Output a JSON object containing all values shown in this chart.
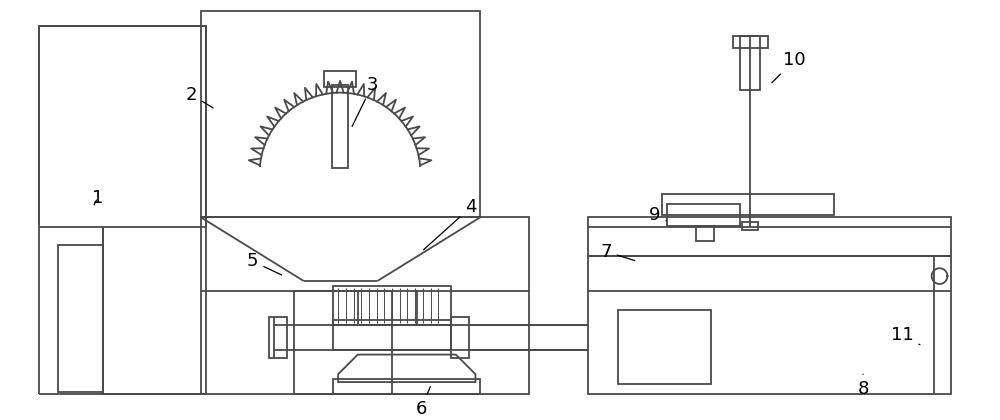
{
  "line_color": "#4a4a4a",
  "bg_color": "#ffffff",
  "label_color": "#000000",
  "label_fontsize": 13,
  "fig_width": 10.0,
  "fig_height": 4.2,
  "dpi": 100
}
